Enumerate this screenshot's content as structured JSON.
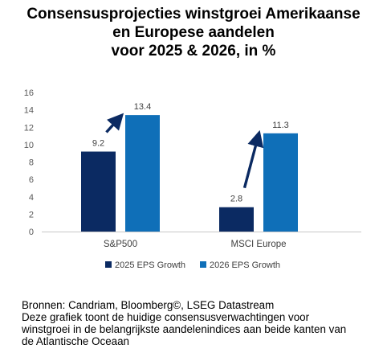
{
  "title_lines": [
    "Consensusprojecties winstgroei Amerikaanse",
    "en Europese aandelen",
    "voor 2025 & 2026, in %"
  ],
  "footer": {
    "source": "Bronnen: Candriam, Bloomberg©, LSEG Datastream",
    "description_lines": [
      "Deze grafiek toont de huidige consensusverwachtingen voor",
      "winstgroei in de belangrijkste aandelenindices aan beide kanten van",
      "de Atlantische Oceaan"
    ]
  },
  "chart_data": {
    "type": "bar",
    "categories": [
      "S&P500",
      "MSCI Europe"
    ],
    "series": [
      {
        "name": "2025 EPS Growth",
        "values": [
          9.2,
          2.8
        ],
        "color": "#0b2a62"
      },
      {
        "name": "2026 EPS Growth",
        "values": [
          13.4,
          11.3
        ],
        "color": "#0f6fb8"
      }
    ],
    "data_labels": [
      [
        "9.2",
        "13.4"
      ],
      [
        "2.8",
        "11.3"
      ]
    ],
    "yticks": [
      0,
      2,
      4,
      6,
      8,
      10,
      12,
      14,
      16
    ],
    "ylim": [
      0,
      16
    ],
    "legend_position": "bottom",
    "grid": false,
    "annotation": "growth arrows from 2025 to 2026 bar",
    "colors": {
      "arrow": "#0b2a62",
      "axis": "#c8c8c8",
      "tick_text": "#595959"
    }
  }
}
